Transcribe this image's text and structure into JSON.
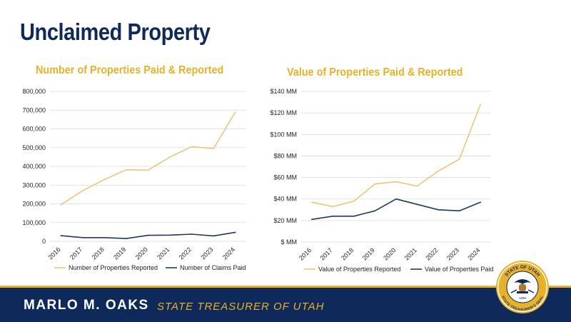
{
  "slide": {
    "title": "Unclaimed Property",
    "footer_name": "MARLO M. OAKS",
    "footer_role": "STATE TREASURER OF UTAH",
    "seal_text_top": "STATE OF UTAH",
    "seal_text_bottom": "STATE TREASURER'S SEAL",
    "seal_year": "1896"
  },
  "colors": {
    "navy": "#0f2a5a",
    "gold": "#e8b12a",
    "series_reported": "#e8c77a",
    "series_paid": "#1f3864",
    "grid": "#d9d9d9"
  },
  "chart_data": [
    {
      "type": "line",
      "title": "Number of Properties Paid & Reported",
      "x": [
        "2016",
        "2017",
        "2018",
        "2019",
        "2020",
        "2021",
        "2022",
        "2023",
        "2024"
      ],
      "ylim": [
        0,
        800000
      ],
      "yticks": [
        0,
        100000,
        200000,
        300000,
        400000,
        500000,
        600000,
        700000,
        800000
      ],
      "ytick_labels": [
        "0",
        "100,000",
        "200,000",
        "300,000",
        "400,000",
        "500,000",
        "600,000",
        "700,000",
        "800,000"
      ],
      "grid": true,
      "legend_position": "bottom",
      "series": [
        {
          "name": "Number of Properties Reported",
          "color": "#e8c77a",
          "values": [
            195000,
            270000,
            330000,
            382000,
            380000,
            450000,
            505000,
            495000,
            690000
          ]
        },
        {
          "name": "Number of Claims Paid",
          "color": "#1f3864",
          "values": [
            30000,
            20000,
            20000,
            15000,
            32000,
            33000,
            38000,
            29000,
            48000
          ]
        }
      ]
    },
    {
      "type": "line",
      "title": "Value of Properties Paid & Reported",
      "x": [
        "2016",
        "2017",
        "2018",
        "2019",
        "2020",
        "2021",
        "2022",
        "2023",
        "2024"
      ],
      "ylim": [
        0,
        140
      ],
      "yticks": [
        0,
        20,
        40,
        60,
        80,
        100,
        120,
        140
      ],
      "ytick_labels": [
        "$ MM",
        "$20 MM",
        "$40 MM",
        "$60 MM",
        "$80 MM",
        "$100 MM",
        "$120 MM",
        "$140 MM"
      ],
      "grid": true,
      "legend_position": "bottom",
      "series": [
        {
          "name": "Value of Properties Reported",
          "color": "#e8c77a",
          "values": [
            37,
            33,
            38,
            54,
            56,
            52,
            66,
            77,
            128
          ]
        },
        {
          "name": "Value of Properties Paid",
          "color": "#1f3864",
          "values": [
            21,
            24,
            24,
            29,
            40,
            35,
            30,
            29,
            37
          ]
        }
      ]
    }
  ]
}
